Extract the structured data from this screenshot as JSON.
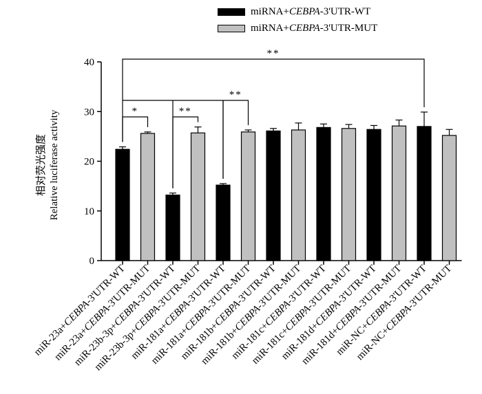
{
  "legend": {
    "wt": {
      "prefix": "miRNA+",
      "gene": "CEBPA",
      "suffix": "-3'UTR-WT",
      "color": "#000000"
    },
    "mut": {
      "prefix": "miRNA+",
      "gene": "CEBPA",
      "suffix": "-3'UTR-MUT",
      "color": "#c0c0c0"
    }
  },
  "ylabel": {
    "zh": "相对荧光强度",
    "en": "Relative luciferase activity"
  },
  "chart_data": {
    "type": "bar",
    "ylabel": "Relative luciferase activity",
    "ylim": [
      0,
      40
    ],
    "yticks": [
      0,
      10,
      20,
      30,
      40
    ],
    "categories": [
      {
        "pre": "miR-23a+",
        "gene": "CEBPA",
        "post": "-3'UTR-WT"
      },
      {
        "pre": "miR-23a+",
        "gene": "CEBPA",
        "post": "-3'UTR-MUT"
      },
      {
        "pre": "miR-23b-3p+",
        "gene": "CEBPA",
        "post": "-3'UTR-WT"
      },
      {
        "pre": "miR-23b-3p+",
        "gene": "CEBPA",
        "post": "-3'UTR-MUT"
      },
      {
        "pre": "miR-181a+",
        "gene": "CEBPA",
        "post": "-3'UTR-WT"
      },
      {
        "pre": "miR-181a+",
        "gene": "CEBPA",
        "post": "-3'UTR-MUT"
      },
      {
        "pre": "miR-181b+",
        "gene": "CEBPA",
        "post": "-3'UTR-WT"
      },
      {
        "pre": "miR-181b+",
        "gene": "CEBPA",
        "post": "-3'UTR-MUT"
      },
      {
        "pre": "miR-181c+",
        "gene": "CEBPA",
        "post": "-3'UTR-WT"
      },
      {
        "pre": "miR-181c+",
        "gene": "CEBPA",
        "post": "-3'UTR-MUT"
      },
      {
        "pre": "miR-181d+",
        "gene": "CEBPA",
        "post": "-3'UTR-WT"
      },
      {
        "pre": "miR-181d+",
        "gene": "CEBPA",
        "post": "-3'UTR-MUT"
      },
      {
        "pre": "miR-NC+",
        "gene": "CEBPA",
        "post": "-3'UTR-WT"
      },
      {
        "pre": "miR-NC+",
        "gene": "CEBPA",
        "post": "-3'UTR-MUT"
      }
    ],
    "values": [
      22.4,
      25.6,
      13.2,
      25.7,
      15.2,
      25.9,
      26.1,
      26.3,
      26.8,
      26.6,
      26.4,
      27.1,
      27.0,
      25.2
    ],
    "errors": [
      0.5,
      0.3,
      0.4,
      1.2,
      0.3,
      0.4,
      0.5,
      1.4,
      0.7,
      0.8,
      0.8,
      1.2,
      2.9,
      1.2
    ],
    "group": [
      "WT",
      "MUT",
      "WT",
      "MUT",
      "WT",
      "MUT",
      "WT",
      "MUT",
      "WT",
      "MUT",
      "WT",
      "MUT",
      "WT",
      "MUT"
    ],
    "significance": [
      {
        "from": 0,
        "to": 1,
        "label": "*"
      },
      {
        "from": 2,
        "to": 3,
        "label": "**"
      },
      {
        "from": 4,
        "to": 5,
        "label": "**"
      },
      {
        "from": 0,
        "to": 12,
        "label": "**"
      }
    ]
  }
}
